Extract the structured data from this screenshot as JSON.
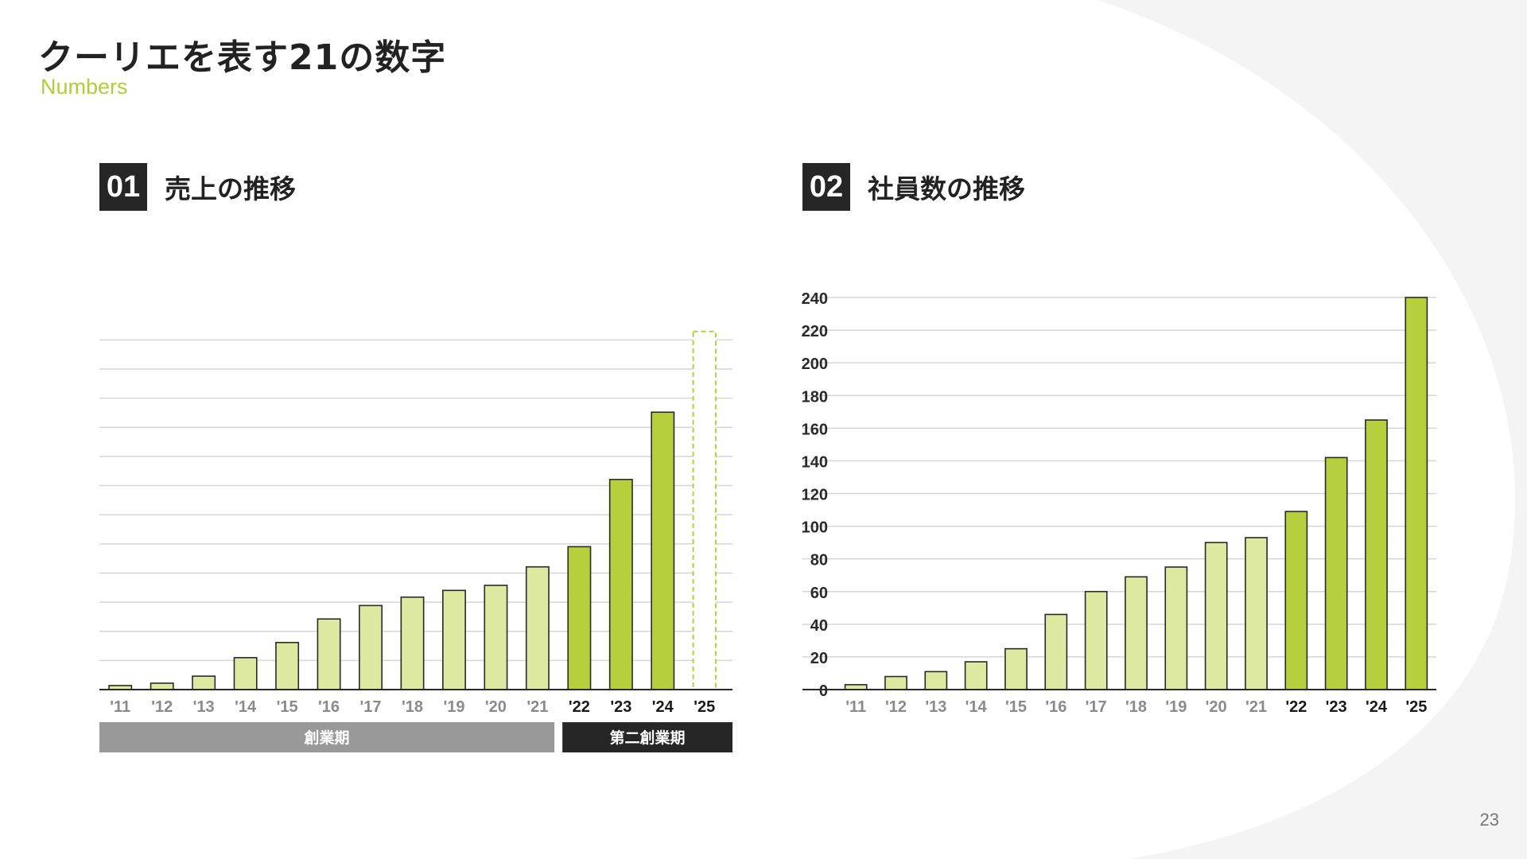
{
  "header": {
    "title": "クーリエを表す21の数字",
    "subtitle": "Numbers"
  },
  "sections": [
    {
      "number": "01",
      "title": "売上の推移"
    },
    {
      "number": "02",
      "title": "社員数の推移"
    }
  ],
  "chart_data": [
    {
      "type": "bar",
      "title": "売上の推移",
      "categories": [
        "'11",
        "'12",
        "'13",
        "'14",
        "'15",
        "'16",
        "'17",
        "'18",
        "'19",
        "'20",
        "'21",
        "'22",
        "'23",
        "'24",
        "'25"
      ],
      "values": [
        1.2,
        1.9,
        4.0,
        9.5,
        14.0,
        21.0,
        25.0,
        27.5,
        29.5,
        31.0,
        36.5,
        42.5,
        62.5,
        82.5,
        106.5
      ],
      "ylim": [
        0,
        110
      ],
      "y_axis_labels_shown": false,
      "grid": true,
      "highlight_categories": [
        "'22",
        "'23",
        "'24",
        "'25"
      ],
      "forecast_categories": [
        "'25"
      ],
      "periods": [
        {
          "label": "創業期",
          "from": "'11",
          "to": "'21",
          "color": "#999999"
        },
        {
          "label": "第二創業期",
          "from": "'22",
          "to": "'25",
          "color": "#262626"
        }
      ],
      "colors": {
        "base": "#dde8a0",
        "highlight": "#b6cf3d",
        "forecast": "#b6cf3d"
      }
    },
    {
      "type": "bar",
      "title": "社員数の推移",
      "categories": [
        "'11",
        "'12",
        "'13",
        "'14",
        "'15",
        "'16",
        "'17",
        "'18",
        "'19",
        "'20",
        "'21",
        "'22",
        "'23",
        "'24",
        "'25"
      ],
      "values": [
        3,
        8,
        11,
        17,
        25,
        46,
        60,
        69,
        75,
        90,
        93,
        109,
        142,
        165,
        240
      ],
      "ylim": [
        0,
        240
      ],
      "yticks": [
        0,
        20,
        40,
        60,
        80,
        100,
        120,
        140,
        160,
        180,
        200,
        220,
        240
      ],
      "grid": true,
      "highlight_categories": [
        "'22",
        "'23",
        "'24",
        "'25"
      ],
      "colors": {
        "base": "#dde8a0",
        "highlight": "#b6cf3d"
      }
    }
  ],
  "page_number": "23"
}
